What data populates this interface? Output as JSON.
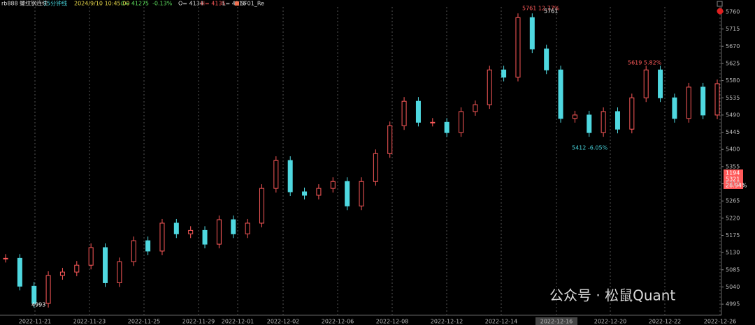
{
  "header": {
    "symbol": "rb888 螺纹钢连续",
    "period": "15分钟线",
    "time": "2024/9/10 10:45:00",
    "close": "C= 4127",
    "change": "-5",
    "change_pct": "-0.13%",
    "open": "O= 4134",
    "high": "H= 4135",
    "low": "L= 4116",
    "indicator": "SF01_Re"
  },
  "chart_data": {
    "type": "candlestick",
    "values": [
      5115,
      5042,
      4997,
      5070,
      5079,
      5097,
      5143,
      5051,
      5106,
      5161,
      5134,
      5207,
      5179,
      5188,
      5152,
      5216,
      5179,
      5207,
      5298,
      5371,
      5289,
      5280,
      5298,
      5316,
      5252,
      5316,
      5389,
      5462,
      5526,
      5471,
      5471,
      5444,
      5499,
      5517,
      5608,
      5589,
      5745,
      5663,
      5608,
      5481,
      5490,
      5444,
      5499,
      5453,
      5535,
      5608,
      5535,
      5481,
      5563,
      5490,
      5572
    ],
    "up_color": "#ff5a5a",
    "down_color": "#4fd8e0",
    "ylim": [
      4966,
      5791
    ],
    "yticks": [
      4995,
      5040,
      5085,
      5130,
      5175,
      5220,
      5265,
      5310,
      5355,
      5400,
      5445,
      5490,
      5535,
      5580,
      5625,
      5670,
      5715,
      5760
    ],
    "x_labels": [
      "2022-11-21",
      "2022-11-23",
      "2022-11-25",
      "2022-11-29",
      "2022-12-01",
      "2022-12-02",
      "2022-12-06",
      "2022-12-08",
      "2022-12-12",
      "2022-12-14",
      "2022-12-16",
      "2022-12-20",
      "2022-12-22",
      "2022-12-26"
    ],
    "annotations": {
      "peak": "5761 12.77%",
      "peak_price": "5761",
      "high2": "5619 5.82%",
      "low2": "5412 -6.05%",
      "low1": "4993"
    },
    "info_box": [
      "1194",
      "5321",
      "28.94%"
    ],
    "watermark": "公众号 · 松鼠Quant"
  }
}
